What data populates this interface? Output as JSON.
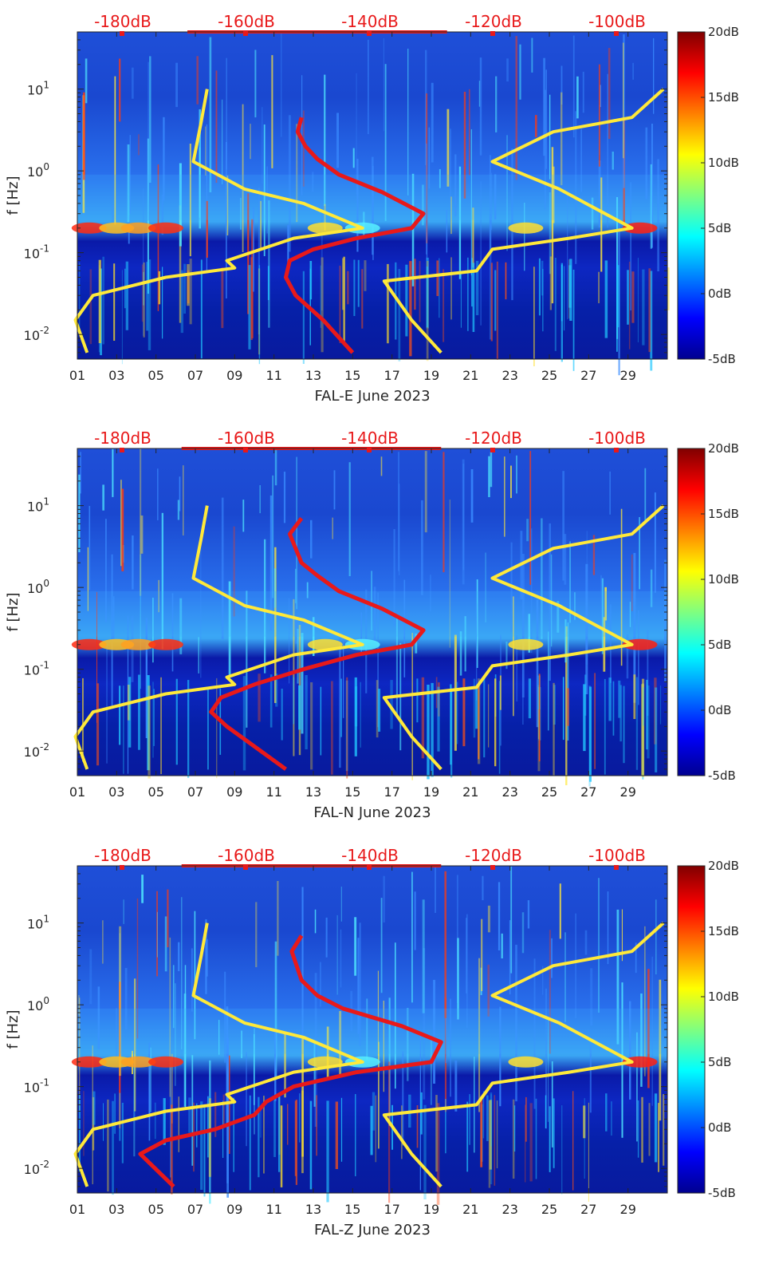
{
  "chart_data": [
    {
      "type": "heatmap",
      "xlabel": "FAL-E June 2023",
      "ylabel": "f [Hz]",
      "x_ticks": [
        "01",
        "03",
        "05",
        "07",
        "09",
        "11",
        "13",
        "15",
        "17",
        "19",
        "21",
        "23",
        "25",
        "27",
        "29"
      ],
      "y_ticks": [
        "10-2",
        "100",
        "10-1",
        "101"
      ],
      "y_scale": "log",
      "ylim": [
        0.005,
        50
      ],
      "xlim": [
        1,
        31
      ],
      "top_axis_labels": [
        "-180dB",
        "-160dB",
        "-140dB",
        "-120dB",
        "-100dB"
      ],
      "colorbar_ticks": [
        "20dB",
        "15dB",
        "10dB",
        "5dB",
        "0dB",
        "-5dB"
      ],
      "colorbar_range": [
        -5,
        20
      ],
      "colors": {
        "model_curve": "#e8191a",
        "noise_model": "#ffe93a"
      },
      "series": [
        {
          "type": "line",
          "points": [
            [
              12.4,
              4.5
            ],
            [
              12.2,
              3
            ],
            [
              12.6,
              2
            ],
            [
              13.2,
              1.4
            ],
            [
              14.3,
              0.9
            ],
            [
              16.5,
              0.55
            ],
            [
              18.6,
              0.3
            ],
            [
              18.0,
              0.2
            ],
            [
              15.2,
              0.15
            ],
            [
              13.0,
              0.11
            ],
            [
              11.8,
              0.08
            ],
            [
              11.6,
              0.05
            ],
            [
              12.1,
              0.03
            ],
            [
              13.5,
              0.015
            ],
            [
              15.0,
              0.006
            ]
          ]
        },
        {
          "type": "line",
          "points": [
            [
              7.6,
              10
            ],
            [
              7.3,
              4
            ],
            [
              6.9,
              1.3
            ],
            [
              9.5,
              0.6
            ],
            [
              12.5,
              0.4
            ],
            [
              15.5,
              0.2
            ],
            [
              12.0,
              0.15
            ],
            [
              8.6,
              0.08
            ],
            [
              9.0,
              0.065
            ],
            [
              5.5,
              0.05
            ],
            [
              1.8,
              0.03
            ],
            [
              0.9,
              0.015
            ],
            [
              1.5,
              0.006
            ]
          ]
        },
        {
          "type": "line",
          "points": [
            [
              30.8,
              10
            ],
            [
              29.2,
              4.5
            ],
            [
              25.2,
              3
            ],
            [
              22.1,
              1.3
            ],
            [
              25.5,
              0.6
            ],
            [
              29.2,
              0.2
            ],
            [
              26.0,
              0.15
            ],
            [
              22.1,
              0.11
            ],
            [
              21.3,
              0.06
            ],
            [
              16.6,
              0.045
            ],
            [
              18.0,
              0.015
            ],
            [
              19.5,
              0.006
            ]
          ]
        }
      ]
    },
    {
      "type": "heatmap",
      "xlabel": "FAL-N June 2023",
      "ylabel": "f [Hz]",
      "x_ticks": [
        "01",
        "03",
        "05",
        "07",
        "09",
        "11",
        "13",
        "15",
        "17",
        "19",
        "21",
        "23",
        "25",
        "27",
        "29"
      ],
      "y_ticks": [
        "10-2",
        "100",
        "10-1",
        "101"
      ],
      "y_scale": "log",
      "ylim": [
        0.005,
        50
      ],
      "xlim": [
        1,
        31
      ],
      "top_axis_labels": [
        "-180dB",
        "-160dB",
        "-140dB",
        "-120dB",
        "-100dB"
      ],
      "colorbar_ticks": [
        "20dB",
        "15dB",
        "10dB",
        "5dB",
        "0dB",
        "-5dB"
      ],
      "colorbar_range": [
        -5,
        20
      ],
      "colors": {
        "model_curve": "#e8191a",
        "noise_model": "#ffe93a"
      },
      "series": [
        {
          "type": "line",
          "points": [
            [
              12.4,
              7
            ],
            [
              11.8,
              4.5
            ],
            [
              12.4,
              2
            ],
            [
              13.2,
              1.4
            ],
            [
              14.3,
              0.9
            ],
            [
              16.5,
              0.55
            ],
            [
              18.6,
              0.3
            ],
            [
              18.0,
              0.2
            ],
            [
              15.2,
              0.15
            ],
            [
              12.5,
              0.1
            ],
            [
              10.0,
              0.065
            ],
            [
              8.3,
              0.045
            ],
            [
              7.8,
              0.03
            ],
            [
              8.6,
              0.02
            ],
            [
              11.6,
              0.006
            ]
          ]
        },
        {
          "type": "line",
          "points": [
            [
              7.6,
              10
            ],
            [
              7.3,
              4
            ],
            [
              6.9,
              1.3
            ],
            [
              9.5,
              0.6
            ],
            [
              12.5,
              0.4
            ],
            [
              15.5,
              0.2
            ],
            [
              12.0,
              0.15
            ],
            [
              8.6,
              0.08
            ],
            [
              9.0,
              0.065
            ],
            [
              5.5,
              0.05
            ],
            [
              1.8,
              0.03
            ],
            [
              0.9,
              0.015
            ],
            [
              1.5,
              0.006
            ]
          ]
        },
        {
          "type": "line",
          "points": [
            [
              30.8,
              10
            ],
            [
              29.2,
              4.5
            ],
            [
              25.2,
              3
            ],
            [
              22.1,
              1.3
            ],
            [
              25.5,
              0.6
            ],
            [
              29.2,
              0.2
            ],
            [
              26.0,
              0.15
            ],
            [
              22.1,
              0.11
            ],
            [
              21.3,
              0.06
            ],
            [
              16.6,
              0.045
            ],
            [
              18.0,
              0.015
            ],
            [
              19.5,
              0.006
            ]
          ]
        }
      ]
    },
    {
      "type": "heatmap",
      "xlabel": "FAL-Z June 2023",
      "ylabel": "f [Hz]",
      "x_ticks": [
        "01",
        "03",
        "05",
        "07",
        "09",
        "11",
        "13",
        "15",
        "17",
        "19",
        "21",
        "23",
        "25",
        "27",
        "29"
      ],
      "y_ticks": [
        "10-2",
        "100",
        "10-1",
        "101"
      ],
      "y_scale": "log",
      "ylim": [
        0.005,
        50
      ],
      "xlim": [
        1,
        31
      ],
      "top_axis_labels": [
        "-180dB",
        "-160dB",
        "-140dB",
        "-120dB",
        "-100dB"
      ],
      "colorbar_ticks": [
        "20dB",
        "15dB",
        "10dB",
        "5dB",
        "0dB",
        "-5dB"
      ],
      "colorbar_range": [
        -5,
        20
      ],
      "colors": {
        "model_curve": "#e8191a",
        "noise_model": "#ffe93a"
      },
      "series": [
        {
          "type": "line",
          "points": [
            [
              12.4,
              7
            ],
            [
              11.9,
              4.5
            ],
            [
              12.4,
              2
            ],
            [
              13.2,
              1.3
            ],
            [
              14.5,
              0.9
            ],
            [
              17.5,
              0.55
            ],
            [
              19.5,
              0.35
            ],
            [
              19.0,
              0.2
            ],
            [
              15.2,
              0.15
            ],
            [
              12.0,
              0.1
            ],
            [
              10.6,
              0.065
            ],
            [
              10.0,
              0.045
            ],
            [
              8.0,
              0.03
            ],
            [
              5.5,
              0.022
            ],
            [
              4.2,
              0.015
            ],
            [
              5.9,
              0.006
            ]
          ]
        },
        {
          "type": "line",
          "points": [
            [
              7.6,
              10
            ],
            [
              7.3,
              4
            ],
            [
              6.9,
              1.3
            ],
            [
              9.5,
              0.6
            ],
            [
              12.5,
              0.4
            ],
            [
              15.5,
              0.2
            ],
            [
              12.0,
              0.15
            ],
            [
              8.6,
              0.08
            ],
            [
              9.0,
              0.065
            ],
            [
              5.5,
              0.05
            ],
            [
              1.8,
              0.03
            ],
            [
              0.9,
              0.015
            ],
            [
              1.5,
              0.006
            ]
          ]
        },
        {
          "type": "line",
          "points": [
            [
              30.8,
              10
            ],
            [
              29.2,
              4.5
            ],
            [
              25.2,
              3
            ],
            [
              22.1,
              1.3
            ],
            [
              25.5,
              0.6
            ],
            [
              29.2,
              0.2
            ],
            [
              26.0,
              0.15
            ],
            [
              22.1,
              0.11
            ],
            [
              21.3,
              0.06
            ],
            [
              16.6,
              0.045
            ],
            [
              18.0,
              0.015
            ],
            [
              19.5,
              0.006
            ]
          ]
        }
      ]
    }
  ]
}
